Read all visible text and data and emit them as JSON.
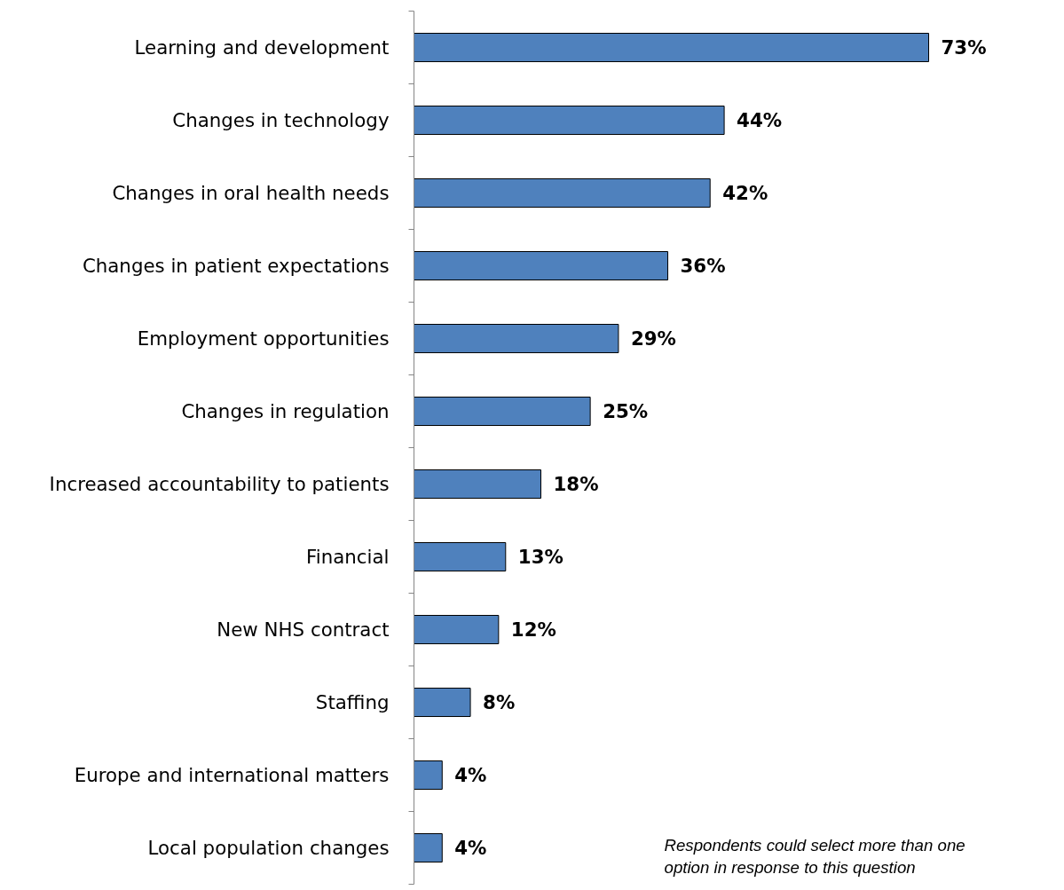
{
  "chart_data": {
    "type": "bar",
    "orientation": "horizontal",
    "categories": [
      "Learning and development",
      "Changes in technology",
      "Changes in oral health needs",
      "Changes in patient expectations",
      "Employment opportunities",
      "Changes in regulation",
      "Increased accountability to patients",
      "Financial",
      "New NHS contract",
      "Staffing",
      "Europe and international matters",
      "Local population changes"
    ],
    "values": [
      73,
      44,
      42,
      36,
      29,
      25,
      18,
      13,
      12,
      8,
      4,
      4
    ],
    "value_labels": [
      "73%",
      "44%",
      "42%",
      "36%",
      "29%",
      "25%",
      "18%",
      "13%",
      "12%",
      "8%",
      "4%",
      "4%"
    ],
    "color": "#4f81bd",
    "annotations": [
      "Respondents could select more than one option in response to this question"
    ],
    "grid": false
  }
}
